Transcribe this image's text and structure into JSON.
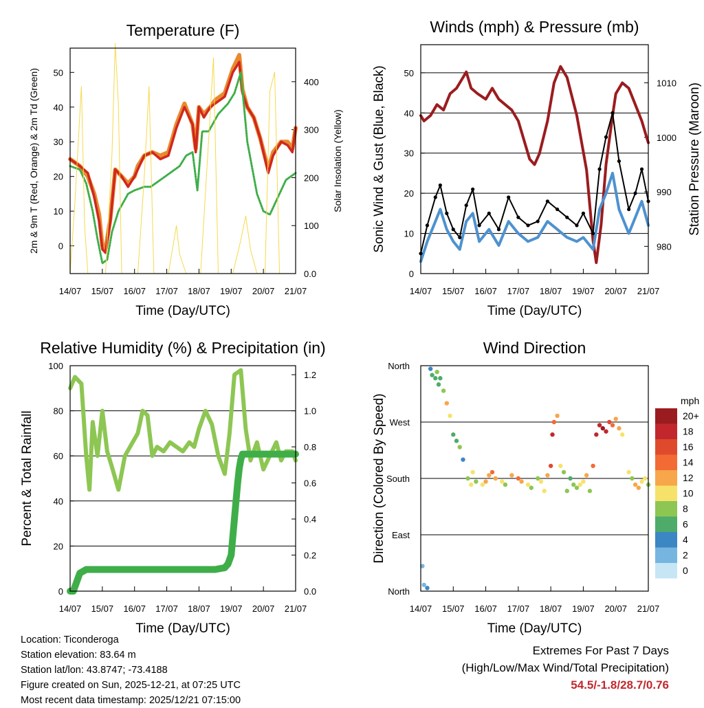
{
  "chart_data": [
    {
      "id": "temp",
      "type": "line",
      "title": "Temperature (F)",
      "xlabel": "Time (Day/UTC)",
      "ylabel": "2m & 9m T (Red, Orange) & 2m Td (Green)",
      "y2label": "Solar Insolation (Yellow)",
      "xticks": [
        "14/07",
        "15/07",
        "16/07",
        "17/07",
        "18/07",
        "19/07",
        "20/07",
        "21/07"
      ],
      "ylim": [
        -8,
        57
      ],
      "yticks": [
        0,
        10,
        20,
        30,
        40,
        50
      ],
      "y2lim": [
        0,
        470
      ],
      "y2ticks": [
        0,
        100,
        200,
        300,
        400
      ],
      "series": [
        {
          "name": "2m T",
          "color": "#e88a2e",
          "x": [
            0,
            0.3,
            0.55,
            0.75,
            0.9,
            1.0,
            1.1,
            1.25,
            1.4,
            1.6,
            1.8,
            2.0,
            2.1,
            2.3,
            2.55,
            2.8,
            3.05,
            3.3,
            3.55,
            3.8,
            3.9,
            4.0,
            4.15,
            4.35,
            4.5,
            4.8,
            5.05,
            5.25,
            5.35,
            5.5,
            5.7,
            5.9,
            6.15,
            6.3,
            6.55,
            6.75,
            6.9,
            7.0
          ],
          "values": [
            25,
            23,
            20,
            15,
            9,
            0,
            -1,
            8,
            22,
            20,
            18,
            20,
            23,
            26,
            27,
            26,
            27,
            35,
            41,
            35,
            28,
            40,
            38,
            40,
            42,
            44,
            51,
            55,
            45,
            40,
            37,
            31,
            22,
            27,
            30,
            30,
            28,
            34
          ]
        },
        {
          "name": "9m T",
          "color": "#d0271f",
          "x": [
            0,
            0.3,
            0.55,
            0.75,
            0.9,
            1.0,
            1.1,
            1.25,
            1.4,
            1.6,
            1.8,
            2.0,
            2.1,
            2.3,
            2.55,
            2.8,
            3.05,
            3.3,
            3.55,
            3.8,
            3.9,
            4.0,
            4.15,
            4.35,
            4.5,
            4.8,
            5.05,
            5.25,
            5.35,
            5.5,
            5.7,
            5.9,
            6.15,
            6.3,
            6.55,
            6.75,
            6.9,
            7.0
          ],
          "values": [
            25,
            23,
            21,
            14,
            7,
            -1,
            -2,
            7,
            22,
            20,
            17,
            20,
            22,
            26,
            27,
            25,
            26,
            34,
            40,
            35,
            27,
            40,
            37,
            40,
            41,
            43,
            50,
            53,
            44,
            40,
            37,
            31,
            21,
            26,
            30,
            29,
            27,
            34
          ]
        },
        {
          "name": "2m Td",
          "color": "#3fae49",
          "x": [
            0,
            0.3,
            0.5,
            0.7,
            0.85,
            1.0,
            1.15,
            1.3,
            1.5,
            1.8,
            2.0,
            2.3,
            2.5,
            2.8,
            3.1,
            3.4,
            3.6,
            3.8,
            3.95,
            4.1,
            4.3,
            4.6,
            4.9,
            5.1,
            5.3,
            5.5,
            5.8,
            6.0,
            6.2,
            6.45,
            6.7,
            7.0
          ],
          "values": [
            23,
            22,
            18,
            10,
            2,
            -5,
            -4,
            4,
            10,
            15,
            16,
            17,
            17,
            19,
            21,
            23,
            26,
            27,
            16,
            33,
            33,
            38,
            41,
            44,
            50,
            30,
            15,
            10,
            9,
            14,
            19,
            21
          ]
        },
        {
          "name": "Solar Insolation",
          "color": "#f5d94a",
          "x": [
            0,
            0.15,
            0.35,
            0.45,
            0.55,
            0.65,
            0.8,
            1.1,
            1.3,
            1.4,
            1.5,
            1.6,
            1.8,
            2.1,
            2.3,
            2.45,
            2.6,
            2.8,
            3.05,
            3.2,
            3.3,
            3.4,
            3.6,
            4.05,
            4.3,
            4.45,
            4.6,
            4.8,
            5.05,
            5.3,
            5.45,
            5.6,
            5.8,
            6.05,
            6.2,
            6.35,
            6.5,
            6.7,
            7.0
          ],
          "values": [
            0,
            150,
            390,
            100,
            0,
            0,
            0,
            0,
            250,
            480,
            350,
            0,
            0,
            0,
            200,
            390,
            0,
            0,
            0,
            60,
            100,
            40,
            0,
            0,
            280,
            450,
            0,
            0,
            0,
            70,
            120,
            50,
            0,
            0,
            380,
            420,
            0,
            0,
            0
          ]
        }
      ]
    },
    {
      "id": "wind",
      "type": "line",
      "title": "Winds (mph) & Pressure (mb)",
      "xlabel": "Time (Day/UTC)",
      "ylabel": "Sonic Wind & Gust (Blue, Black)",
      "y2label": "Station Pressure (Maroon)",
      "xticks": [
        "14/07",
        "15/07",
        "16/07",
        "17/07",
        "18/07",
        "19/07",
        "20/07",
        "21/07"
      ],
      "ylim": [
        0,
        57
      ],
      "yticks": [
        0,
        10,
        20,
        30,
        40,
        50
      ],
      "y2lim": [
        975,
        1017
      ],
      "y2ticks": [
        980,
        990,
        1000,
        1010
      ],
      "series": [
        {
          "name": "Pressure",
          "color": "#9b1c1f",
          "x": [
            0,
            0.1,
            0.3,
            0.5,
            0.7,
            0.9,
            1.1,
            1.3,
            1.4,
            1.55,
            1.75,
            2.0,
            2.2,
            2.4,
            2.6,
            2.8,
            3.0,
            3.2,
            3.35,
            3.5,
            3.65,
            3.9,
            4.1,
            4.3,
            4.5,
            4.8,
            5.1,
            5.3,
            5.4,
            5.55,
            5.7,
            5.9,
            6.0,
            6.2,
            6.4,
            6.6,
            6.8,
            6.95,
            7.0
          ],
          "values": [
            1004,
            1003,
            1004,
            1006,
            1005,
            1008,
            1009,
            1011,
            1012,
            1009,
            1008,
            1007,
            1009,
            1007,
            1006,
            1005,
            1003,
            999,
            996,
            995,
            997,
            1003,
            1010,
            1013,
            1011,
            1004,
            994,
            981,
            977,
            984,
            995,
            1004,
            1008,
            1010,
            1009,
            1006,
            1003,
            1000,
            999
          ]
        },
        {
          "name": "Wind",
          "color": "#4e92cf",
          "x": [
            0,
            0.2,
            0.45,
            0.6,
            0.8,
            1.0,
            1.2,
            1.4,
            1.6,
            1.8,
            2.1,
            2.4,
            2.7,
            3.0,
            3.3,
            3.6,
            3.9,
            4.2,
            4.5,
            4.8,
            5.0,
            5.3,
            5.5,
            5.7,
            5.9,
            6.1,
            6.4,
            6.6,
            6.8,
            7.0
          ],
          "values": [
            3,
            8,
            13,
            16,
            11,
            8,
            6,
            13,
            15,
            8,
            11,
            7,
            13,
            10,
            8,
            9,
            13,
            11,
            9,
            8,
            9,
            6,
            16,
            20,
            25,
            16,
            10,
            14,
            18,
            12
          ]
        },
        {
          "name": "Gust",
          "color": "#000000",
          "x": [
            0,
            0.2,
            0.45,
            0.6,
            0.8,
            1.0,
            1.2,
            1.4,
            1.6,
            1.8,
            2.1,
            2.4,
            2.7,
            3.0,
            3.3,
            3.6,
            3.9,
            4.2,
            4.5,
            4.8,
            5.0,
            5.3,
            5.5,
            5.7,
            5.9,
            6.1,
            6.4,
            6.6,
            6.8,
            7.0
          ],
          "values": [
            5,
            12,
            19,
            22,
            15,
            11,
            9,
            17,
            21,
            12,
            15,
            11,
            19,
            14,
            12,
            13,
            18,
            16,
            14,
            12,
            15,
            10,
            26,
            34,
            40,
            28,
            16,
            20,
            26,
            18
          ]
        }
      ]
    },
    {
      "id": "rh",
      "type": "line",
      "title": "Relative Humidity (%) & Precipitation (in)",
      "xlabel": "Time (Day/UTC)",
      "ylabel": "Percent & Total Rainfall",
      "xticks": [
        "14/07",
        "15/07",
        "16/07",
        "17/07",
        "18/07",
        "19/07",
        "20/07",
        "21/07"
      ],
      "ylim": [
        0,
        100
      ],
      "yticks": [
        0,
        20,
        40,
        60,
        80,
        100
      ],
      "y2lim": [
        0,
        1.25
      ],
      "y2ticks": [
        0.0,
        0.2,
        0.4,
        0.6,
        0.8,
        1.0,
        1.2
      ],
      "series": [
        {
          "name": "Relative Humidity",
          "color": "#8dc653",
          "x": [
            0,
            0.15,
            0.35,
            0.5,
            0.6,
            0.7,
            0.85,
            1.0,
            1.15,
            1.3,
            1.5,
            1.7,
            1.9,
            2.1,
            2.25,
            2.4,
            2.55,
            2.7,
            2.9,
            3.1,
            3.3,
            3.5,
            3.7,
            3.85,
            4.0,
            4.2,
            4.4,
            4.6,
            4.8,
            4.95,
            5.1,
            5.3,
            5.45,
            5.6,
            5.8,
            6.0,
            6.2,
            6.4,
            6.55,
            6.7,
            6.9,
            7.0
          ],
          "values": [
            90,
            95,
            92,
            60,
            45,
            75,
            60,
            80,
            62,
            55,
            45,
            60,
            65,
            70,
            80,
            78,
            60,
            64,
            62,
            66,
            64,
            62,
            66,
            64,
            72,
            80,
            74,
            60,
            52,
            70,
            96,
            98,
            72,
            58,
            66,
            54,
            60,
            66,
            58,
            62,
            62,
            58
          ]
        },
        {
          "name": "Total Rainfall",
          "color": "#3fae49",
          "x": [
            0,
            0.1,
            0.2,
            0.3,
            0.5,
            1.0,
            2.0,
            3.0,
            4.0,
            4.5,
            4.8,
            4.9,
            5.0,
            5.05,
            5.1,
            5.15,
            5.2,
            5.25,
            5.3,
            5.35,
            5.4,
            5.45,
            5.5,
            6.0,
            6.5,
            7.0
          ],
          "values": [
            0,
            0,
            0.05,
            0.1,
            0.12,
            0.12,
            0.12,
            0.12,
            0.12,
            0.12,
            0.13,
            0.15,
            0.2,
            0.3,
            0.4,
            0.5,
            0.6,
            0.68,
            0.73,
            0.76,
            0.76,
            0.76,
            0.76,
            0.76,
            0.76,
            0.76
          ]
        }
      ]
    },
    {
      "id": "dir",
      "type": "scatter",
      "title": "Wind Direction",
      "xlabel": "Time (Day/UTC)",
      "ylabel": "Direction (Colored By Speed)",
      "xticks": [
        "14/07",
        "15/07",
        "16/07",
        "17/07",
        "18/07",
        "19/07",
        "20/07",
        "21/07"
      ],
      "yticks": [
        "North",
        "East",
        "South",
        "West",
        "North"
      ],
      "ylim": [
        0,
        360
      ],
      "legend_title": "mph",
      "legend_labels": [
        "20+",
        "18",
        "16",
        "14",
        "12",
        "10",
        "8",
        "6",
        "4",
        "2",
        "0"
      ],
      "legend_colors": [
        "#9b1c1f",
        "#c1272d",
        "#e04a2c",
        "#f26b35",
        "#f7a64a",
        "#f6e26b",
        "#8dc653",
        "#4eab6a",
        "#3c86c4",
        "#76b5e0",
        "#c6e6f6"
      ],
      "x": [
        0.05,
        0.1,
        0.2,
        0.3,
        0.35,
        0.45,
        0.5,
        0.55,
        0.6,
        0.7,
        0.8,
        0.9,
        1.0,
        1.1,
        1.2,
        1.3,
        1.45,
        1.55,
        1.6,
        1.7,
        1.9,
        2.0,
        2.1,
        2.2,
        2.3,
        2.5,
        2.6,
        2.8,
        3.0,
        3.1,
        3.3,
        3.4,
        3.6,
        3.7,
        3.8,
        3.9,
        4.0,
        4.05,
        4.1,
        4.2,
        4.3,
        4.4,
        4.5,
        4.6,
        4.7,
        4.8,
        4.9,
        5.0,
        5.1,
        5.2,
        5.3,
        5.4,
        5.5,
        5.6,
        5.7,
        5.8,
        5.9,
        6.0,
        6.1,
        6.2,
        6.4,
        6.5,
        6.6,
        6.7,
        6.8,
        6.9,
        7.0
      ],
      "y": [
        40,
        10,
        5,
        355,
        345,
        340,
        350,
        330,
        340,
        320,
        300,
        280,
        250,
        240,
        230,
        210,
        180,
        170,
        190,
        175,
        170,
        175,
        185,
        190,
        180,
        175,
        170,
        185,
        180,
        175,
        170,
        165,
        180,
        175,
        160,
        185,
        200,
        250,
        270,
        280,
        200,
        190,
        160,
        180,
        170,
        165,
        170,
        175,
        185,
        160,
        200,
        250,
        265,
        260,
        255,
        270,
        265,
        275,
        260,
        250,
        190,
        180,
        170,
        165,
        175,
        180,
        170
      ],
      "s": [
        3,
        2,
        4,
        5,
        6,
        7,
        8,
        7,
        6,
        9,
        12,
        10,
        6,
        7,
        8,
        5,
        9,
        10,
        11,
        9,
        10,
        12,
        13,
        14,
        12,
        11,
        9,
        13,
        15,
        12,
        10,
        8,
        9,
        11,
        10,
        13,
        16,
        18,
        14,
        12,
        10,
        9,
        8,
        7,
        8,
        9,
        10,
        11,
        12,
        8,
        14,
        18,
        19,
        20,
        18,
        16,
        14,
        13,
        12,
        11,
        10,
        9,
        12,
        13,
        11,
        10,
        9
      ]
    }
  ],
  "info": {
    "location": "Location: Ticonderoga",
    "elevation": "Station elevation: 83.64 m",
    "latlon": "Station lat/lon: 43.8747; -73.4188",
    "created": "Figure created on Sun, 2025-12-21, at 07:25 UTC",
    "recent": "Most recent data timestamp: 2025/12/21 07:15:00"
  },
  "extremes": {
    "title": "Extremes For Past 7 Days",
    "subtitle": "(High/Low/Max Wind/Total Precipitation)",
    "value": "54.5/-1.8/28.7/0.76"
  }
}
